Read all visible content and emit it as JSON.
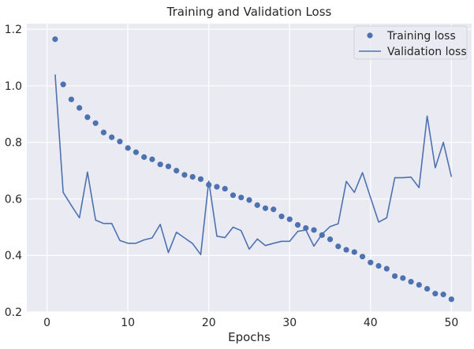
{
  "chart_data": {
    "type": "line",
    "title": "Training and Validation Loss",
    "xlabel": "Epochs",
    "ylabel": "",
    "xlim": [
      -2.5,
      52.5
    ],
    "ylim": [
      0.2,
      1.22
    ],
    "xticks": [
      0,
      10,
      20,
      30,
      40,
      50
    ],
    "yticks": [
      0.2,
      0.4,
      0.6,
      0.8,
      1.0,
      1.2
    ],
    "ytick_labels": [
      "0.2",
      "0.4",
      "0.6",
      "0.8",
      "1.0",
      "1.2"
    ],
    "grid": true,
    "legend_position": "top-right",
    "colors": {
      "plot_bg": "#eaeaf2",
      "grid": "#ffffff",
      "series": "#4c72b0"
    },
    "series": [
      {
        "name": "Training loss",
        "style": "markers",
        "x": [
          1,
          2,
          3,
          4,
          5,
          6,
          7,
          8,
          9,
          10,
          11,
          12,
          13,
          14,
          15,
          16,
          17,
          18,
          19,
          20,
          21,
          22,
          23,
          24,
          25,
          26,
          27,
          28,
          29,
          30,
          31,
          32,
          33,
          34,
          35,
          36,
          37,
          38,
          39,
          40,
          41,
          42,
          43,
          44,
          45,
          46,
          47,
          48,
          49,
          50
        ],
        "y": [
          1.165,
          1.005,
          0.952,
          0.922,
          0.889,
          0.868,
          0.835,
          0.818,
          0.803,
          0.78,
          0.765,
          0.748,
          0.74,
          0.722,
          0.715,
          0.7,
          0.685,
          0.678,
          0.67,
          0.65,
          0.643,
          0.636,
          0.613,
          0.605,
          0.596,
          0.578,
          0.567,
          0.563,
          0.538,
          0.528,
          0.508,
          0.497,
          0.49,
          0.472,
          0.457,
          0.432,
          0.42,
          0.412,
          0.396,
          0.375,
          0.363,
          0.353,
          0.327,
          0.32,
          0.307,
          0.296,
          0.282,
          0.265,
          0.262,
          0.245
        ]
      },
      {
        "name": "Validation loss",
        "style": "line",
        "x": [
          1,
          2,
          3,
          4,
          5,
          6,
          7,
          8,
          9,
          10,
          11,
          12,
          13,
          14,
          15,
          16,
          17,
          18,
          19,
          20,
          21,
          22,
          23,
          24,
          25,
          26,
          27,
          28,
          29,
          30,
          31,
          32,
          33,
          34,
          35,
          36,
          37,
          38,
          39,
          40,
          41,
          42,
          43,
          44,
          45,
          46,
          47,
          48,
          49,
          50
        ],
        "y": [
          1.04,
          0.623,
          0.577,
          0.533,
          0.695,
          0.525,
          0.513,
          0.513,
          0.453,
          0.443,
          0.443,
          0.455,
          0.462,
          0.51,
          0.41,
          0.482,
          0.462,
          0.442,
          0.403,
          0.663,
          0.468,
          0.463,
          0.5,
          0.488,
          0.422,
          0.458,
          0.435,
          0.443,
          0.45,
          0.45,
          0.485,
          0.49,
          0.433,
          0.475,
          0.502,
          0.512,
          0.662,
          0.623,
          0.693,
          0.605,
          0.518,
          0.533,
          0.675,
          0.675,
          0.677,
          0.64,
          0.893,
          0.71,
          0.8,
          0.678
        ]
      }
    ]
  }
}
